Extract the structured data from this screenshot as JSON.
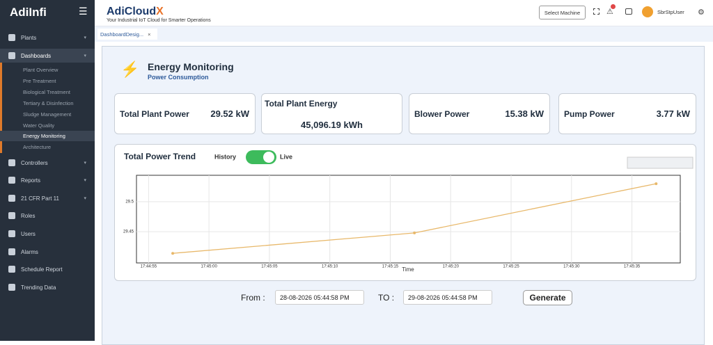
{
  "sidebar": {
    "logo": "AdiInfi",
    "menu": [
      "Plants",
      "Dashboards",
      "Controllers",
      "Reports",
      "21 CFR Part 11",
      "Roles",
      "Users",
      "Alarms",
      "Schedule Report",
      "Trending Data"
    ],
    "submenu": [
      "Plant Overview",
      "Pre Treatment",
      "Biological Treatment",
      "Tertiary & Disinfection",
      "Sludge Management",
      "Water Quality",
      "Energy Monitoring",
      "Architecture"
    ]
  },
  "header": {
    "brand": "AdiCloud",
    "brand_mark": "X",
    "tagline": "Your Industrial IoT Cloud for Smarter Operations",
    "select_button": "Select Machine",
    "user": "SbrStpUser"
  },
  "tab": "DashboardDesig...",
  "page": {
    "title": "Energy Monitoring",
    "subtitle": "Power Consumption"
  },
  "cards": [
    {
      "label": "Total Plant Power",
      "value": "29.52 kW"
    },
    {
      "label": "Total Plant Energy",
      "value": "45,096.19 kWh"
    },
    {
      "label": "Blower Power",
      "value": "15.38 kW"
    },
    {
      "label": "Pump Power",
      "value": "3.77 kW"
    }
  ],
  "toggle": {
    "left": "History",
    "right": "Live"
  },
  "chart_data": {
    "type": "line",
    "title": "Total Power Trend",
    "x_label": "Time",
    "x": [
      "17:44:57",
      "17:45:17",
      "17:45:37"
    ],
    "values": [
      29.414,
      29.448,
      29.53
    ],
    "color": "#e8b86a",
    "xlim": [
      "17:44:54",
      "17:45:39"
    ],
    "xticks": [
      "17:44:55",
      "17:45:00",
      "17:45:05",
      "17:45:10",
      "17:45:15",
      "17:45:20",
      "17:45:25",
      "17:45:30",
      "17:45:35"
    ],
    "ylim": [
      29.398,
      29.544
    ],
    "yticks": [
      29.45,
      29.5
    ],
    "grid": true
  },
  "filter": {
    "from_label": "From :",
    "from_value": "28-08-2026 05:44:58 PM",
    "to_label": "TO :",
    "to_value": "29-08-2026 05:44:58 PM",
    "button": "Generate"
  }
}
